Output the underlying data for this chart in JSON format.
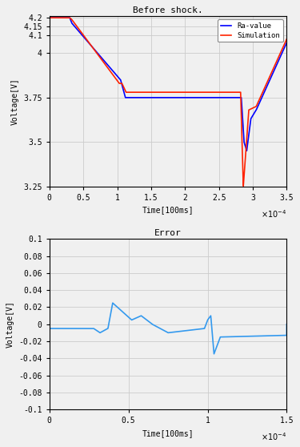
{
  "title1": "Before shock.",
  "title2": "Error",
  "xlabel1": "Time[100ms]",
  "xlabel2": "Time[100ms]",
  "ylabel1": "Voltage[V]",
  "ylabel2": "Voltage[V]",
  "xlim1": [
    0,
    0.00035
  ],
  "xlim2": [
    0,
    0.00015
  ],
  "ylim1": [
    3.25,
    4.21
  ],
  "ylim2": [
    -0.1,
    0.1
  ],
  "line1_color": "#0000FF",
  "line2_color": "#FF2200",
  "error_color": "#3399EE",
  "legend_labels": [
    "Ra-value",
    "Simulation"
  ],
  "bg_color": "#F0F0F0",
  "grid_color": "#CCCCCC"
}
